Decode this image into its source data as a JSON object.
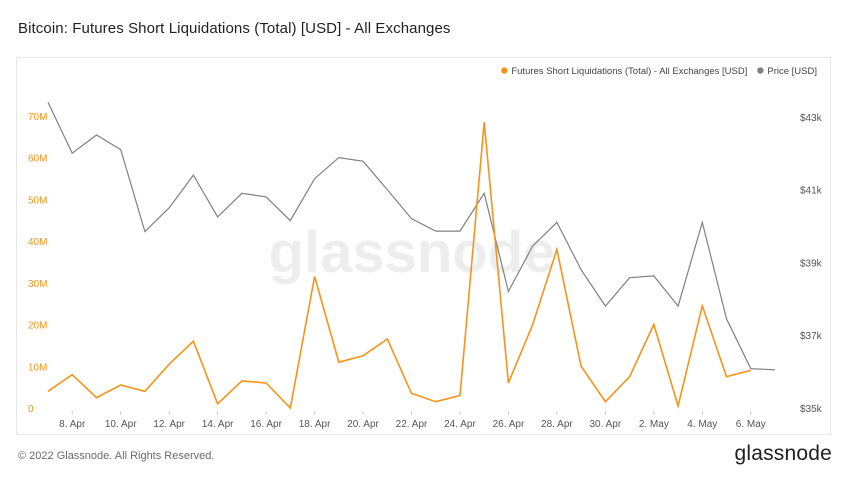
{
  "title": "Bitcoin: Futures Short Liquidations (Total) [USD] - All Exchanges",
  "footer": {
    "copyright": "© 2022 Glassnode. All Rights Reserved.",
    "logo": "glassnode",
    "watermark": "glassnode"
  },
  "colors": {
    "liquidations": "#f7931a",
    "price": "#808080",
    "left_axis_text": "#f7931a",
    "right_axis_text": "#555555",
    "x_axis_text": "#555555"
  },
  "chart_data": {
    "type": "line",
    "x": [
      "7. Apr",
      "8. Apr",
      "9. Apr",
      "10. Apr",
      "11. Apr",
      "12. Apr",
      "13. Apr",
      "14. Apr",
      "15. Apr",
      "16. Apr",
      "17. Apr",
      "18. Apr",
      "19. Apr",
      "20. Apr",
      "21. Apr",
      "22. Apr",
      "23. Apr",
      "24. Apr",
      "25. Apr",
      "26. Apr",
      "27. Apr",
      "28. Apr",
      "29. Apr",
      "30. Apr",
      "1. May",
      "2. May",
      "3. May",
      "4. May",
      "5. May",
      "6. May",
      "7. May"
    ],
    "x_tick_labels": [
      "8. Apr",
      "10. Apr",
      "12. Apr",
      "14. Apr",
      "16. Apr",
      "18. Apr",
      "20. Apr",
      "22. Apr",
      "24. Apr",
      "26. Apr",
      "28. Apr",
      "30. Apr",
      "2. May",
      "4. May",
      "6. May"
    ],
    "series": [
      {
        "name": "Futures Short Liquidations (Total) - All Exchanges [USD]",
        "axis": "left",
        "values": [
          4000000,
          8000000,
          2500000,
          5500000,
          4000000,
          10500000,
          16000000,
          1000000,
          6500000,
          6000000,
          0,
          31500000,
          11000000,
          12500000,
          16500000,
          3500000,
          1500000,
          3000000,
          68500000,
          6000000,
          20000000,
          38000000,
          10000000,
          1500000,
          7500000,
          20000000,
          500000,
          24500000,
          7500000,
          9000000,
          null
        ]
      },
      {
        "name": "Price [USD]",
        "axis": "right",
        "values": [
          43400,
          42000,
          42500,
          42100,
          39850,
          40500,
          41400,
          40250,
          40900,
          40800,
          40150,
          41300,
          41880,
          41780,
          41000,
          40200,
          39860,
          39860,
          40900,
          38200,
          39450,
          40100,
          38800,
          37800,
          38580,
          38630,
          37800,
          40100,
          37450,
          36080,
          36050
        ]
      }
    ],
    "left_axis": {
      "ticks": [
        "0",
        "10M",
        "20M",
        "30M",
        "40M",
        "50M",
        "60M",
        "70M"
      ],
      "ylim": [
        0,
        75000000
      ]
    },
    "right_axis": {
      "ticks": [
        "$35k",
        "$37k",
        "$39k",
        "$41k",
        "$43k"
      ],
      "ylim": [
        35000,
        43600
      ]
    },
    "xlabel": "",
    "ylabel": "",
    "grid": false,
    "legend_position": "top-right"
  }
}
